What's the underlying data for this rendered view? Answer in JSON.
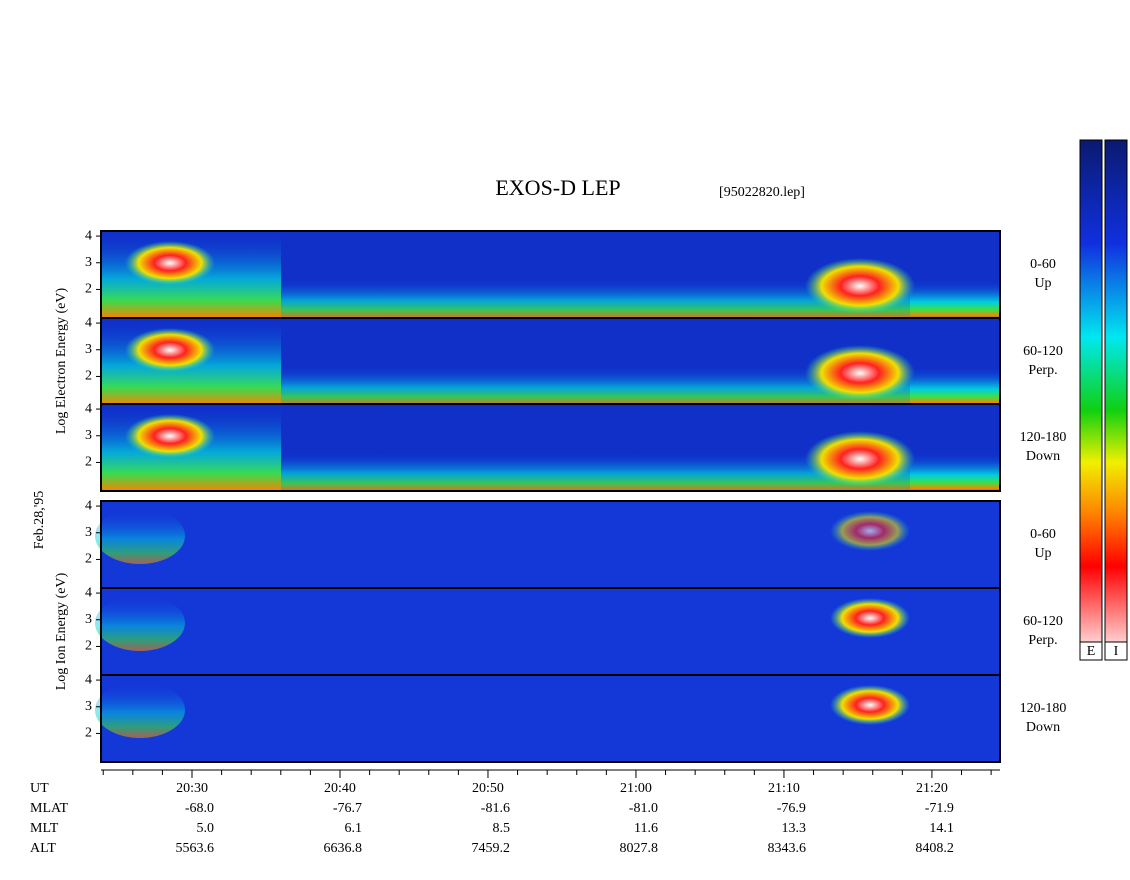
{
  "chart_data": {
    "type": "spectrogram",
    "title": "EXOS-D LEP",
    "subtitle": "[95022820.lep]",
    "date_label": "Feb.28,'95",
    "groups": [
      {
        "ylabel": "Log Electron Energy (eV)",
        "colorbar_label": "E",
        "panels": [
          {
            "label": [
              "0-60",
              "Up"
            ]
          },
          {
            "label": [
              "60-120",
              "Perp."
            ]
          },
          {
            "label": [
              "120-180",
              "Down"
            ]
          }
        ]
      },
      {
        "ylabel": "Log Ion Energy (eV)",
        "colorbar_label": "I",
        "panels": [
          {
            "label": [
              "0-60",
              "Up"
            ]
          },
          {
            "label": [
              "60-120",
              "Perp."
            ]
          },
          {
            "label": [
              "120-180",
              "Down"
            ]
          }
        ]
      }
    ],
    "ylim": [
      0.93,
      4.19
    ],
    "yticks": [
      2,
      3,
      4
    ],
    "xlim": [
      23.85,
      84.6
    ],
    "xticks": [
      {
        "value": 30,
        "label": "20:30"
      },
      {
        "value": 40,
        "label": "20:40"
      },
      {
        "value": 50,
        "label": "20:50"
      },
      {
        "value": 60,
        "label": "21:00"
      },
      {
        "value": 70,
        "label": "21:10"
      },
      {
        "value": 80,
        "label": "21:20"
      }
    ],
    "xminorticks": [
      24,
      26,
      28,
      32,
      34,
      36,
      38,
      42,
      44,
      46,
      48,
      52,
      54,
      56,
      58,
      62,
      64,
      66,
      68,
      72,
      74,
      76,
      78,
      82,
      84
    ],
    "x_label": "UT",
    "rows": [
      {
        "name": "MLAT",
        "values": [
          -68.0,
          -76.7,
          -81.6,
          -81.0,
          -76.9,
          -71.9
        ],
        "value_labels": [
          "-68.0",
          "-76.7",
          "-81.6",
          "-81.0",
          "-76.9",
          "-71.9"
        ]
      },
      {
        "name": "MLT",
        "values": [
          5.0,
          6.1,
          8.5,
          11.6,
          13.3,
          14.1
        ],
        "value_labels": [
          "5.0",
          "6.1",
          "8.5",
          "11.6",
          "13.3",
          "14.1"
        ]
      },
      {
        "name": "ALT",
        "values": [
          5563.6,
          6636.8,
          7459.2,
          8027.8,
          8343.6,
          8408.2
        ],
        "value_labels": [
          "5563.6",
          "6636.8",
          "7459.2",
          "8027.8",
          "8343.6",
          "8408.2"
        ]
      }
    ]
  }
}
